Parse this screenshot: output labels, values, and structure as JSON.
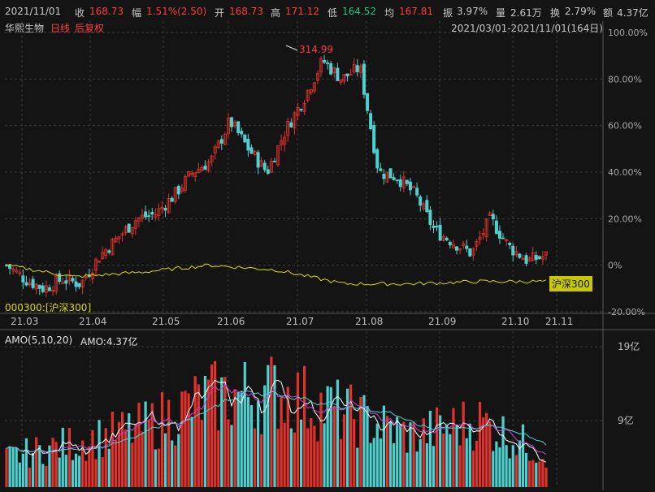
{
  "quote_bar": {
    "date": "2021/11/01",
    "close_label": "收",
    "close": "168.73",
    "change_label": "幅",
    "change": "1.51%(2.50)",
    "open_label": "开",
    "open": "168.73",
    "high_label": "高",
    "high": "171.12",
    "low_label": "低",
    "low": "164.52",
    "avg_label": "均",
    "avg": "167.81",
    "amp_label": "振",
    "amp": "3.97%",
    "vol_label": "量",
    "vol": "2.61万",
    "turn_label": "换",
    "turn": "2.79%",
    "amount_label": "额",
    "amount": "4.37亿"
  },
  "header": {
    "name": "华熙生物",
    "period": "日线",
    "adjust": "后复权",
    "range": "2021/03/01-2021/11/01(164日)"
  },
  "price_panel": {
    "peak_label": "314.99",
    "index_tag": "沪深300",
    "index_legend": "000300:[沪深300]"
  },
  "volume_panel": {
    "indicator": "AMO(5,10,20)",
    "amo_value": "AMO:4.37亿"
  },
  "colors": {
    "up": "#e0312b",
    "down": "#4fd0cf",
    "index_line": "#d9d900",
    "ma5": "#ffffff",
    "ma10": "#d23cd2",
    "ma20": "#4fd0cf",
    "grid": "#3a3a3a"
  },
  "chart_data": [
    {
      "type": "candlestick",
      "title": "",
      "y_unit": "% change from 2021/03/01",
      "yticks": [
        "100.00%",
        "80.00%",
        "60.00%",
        "40.00%",
        "20.00%",
        "0%",
        "-20.00%"
      ],
      "ylim": [
        -20,
        100
      ],
      "xticks": [
        "21.03",
        "21.04",
        "21.05",
        "21.06",
        "21.07",
        "21.08",
        "21.09",
        "21.10",
        "21.11"
      ],
      "grid": true,
      "series": [
        {
          "name": "华熙生物",
          "anchors_pct": [
            [
              "21.03",
              0
            ],
            [
              "21.03",
              -6
            ],
            [
              "21.03",
              -10
            ],
            [
              "21.03",
              -6
            ],
            [
              "21.03",
              -8
            ],
            [
              "21.04",
              4
            ],
            [
              "21.04",
              12
            ],
            [
              "21.04",
              20
            ],
            [
              "21.04",
              22
            ],
            [
              "21.05",
              30
            ],
            [
              "21.05",
              40
            ],
            [
              "21.05",
              45
            ],
            [
              "21.06",
              62
            ],
            [
              "21.06",
              50
            ],
            [
              "21.06",
              40
            ],
            [
              "21.06",
              58
            ],
            [
              "21.07",
              72
            ],
            [
              "21.07",
              88
            ],
            [
              "21.07",
              80
            ],
            [
              "21.07",
              85
            ],
            [
              "21.08",
              40
            ],
            [
              "21.08",
              38
            ],
            [
              "21.08",
              30
            ],
            [
              "21.09",
              15
            ],
            [
              "21.09",
              10
            ],
            [
              "21.09",
              5
            ],
            [
              "21.10",
              20
            ],
            [
              "21.10",
              8
            ],
            [
              "21.10",
              2
            ],
            [
              "21.11",
              4
            ]
          ]
        },
        {
          "name": "000300:[沪深300]",
          "anchors_pct": [
            [
              "21.03",
              0
            ],
            [
              "21.04",
              -5
            ],
            [
              "21.05",
              -3
            ],
            [
              "21.06",
              0
            ],
            [
              "21.07",
              -2
            ],
            [
              "21.08",
              -8
            ],
            [
              "21.09",
              -8
            ],
            [
              "21.10",
              -7
            ],
            [
              "21.11",
              -7
            ]
          ]
        }
      ]
    },
    {
      "type": "bar",
      "title": "",
      "y_unit": "亿",
      "yticks": [
        "19亿",
        "9亿"
      ],
      "ylim": [
        0,
        20
      ],
      "xticks": [
        "21.03",
        "21.04",
        "21.05",
        "21.06",
        "21.07",
        "21.08",
        "21.09",
        "21.10",
        "21.11"
      ],
      "series": [
        {
          "name": "AMO",
          "anchors": [
            [
              "21.03",
              4
            ],
            [
              "21.04",
              6
            ],
            [
              "21.05",
              8
            ],
            [
              "21.06",
              12
            ],
            [
              "21.07",
              13
            ],
            [
              "21.08",
              10
            ],
            [
              "21.09",
              7
            ],
            [
              "21.10",
              9
            ],
            [
              "21.11",
              4.37
            ]
          ]
        }
      ]
    }
  ]
}
